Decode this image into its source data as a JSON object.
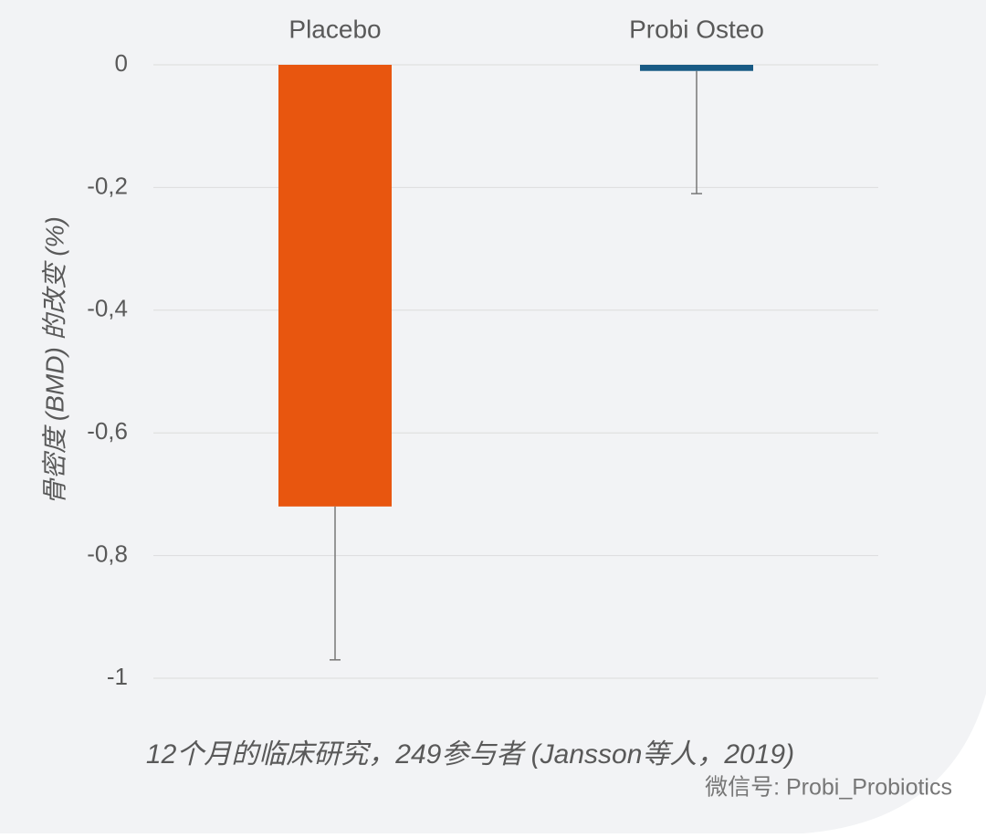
{
  "chart_data": {
    "type": "bar",
    "y_label": "骨密度 (BMD) 的改变 (%)",
    "categories": [
      "Placebo",
      "Probi Osteo"
    ],
    "values": [
      -0.72,
      -0.01
    ],
    "errors": [
      0.25,
      0.2
    ],
    "colors": [
      "#e8560f",
      "#185a84"
    ],
    "ylim": [
      -1,
      0
    ],
    "yticks": [
      0,
      {
        "value": -0.2,
        "label": "-0,2"
      },
      {
        "value": -0.4,
        "label": "-0,4"
      },
      {
        "value": -0.6,
        "label": "-0,6"
      },
      {
        "value": -0.8,
        "label": "-0,8"
      },
      -1
    ],
    "grid": true,
    "footnote": "12个月的临床研究，249参与者 (Jansson等人，2019)",
    "watermark": "微信号: Probi_Probiotics"
  }
}
